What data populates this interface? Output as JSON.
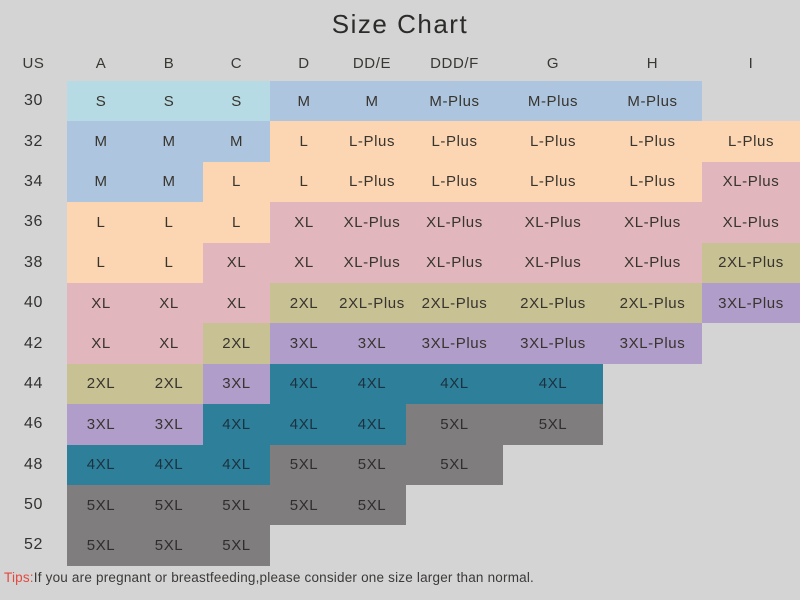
{
  "chart_data": {
    "type": "table",
    "title": "Size Chart",
    "columns": [
      "US",
      "A",
      "B",
      "C",
      "D",
      "DD/E",
      "DDD/F",
      "G",
      "H",
      "I"
    ],
    "rows": [
      {
        "us": "30",
        "cells": [
          "S",
          "S",
          "S",
          "M",
          "M",
          "M-Plus",
          "M-Plus",
          "M-Plus",
          null
        ]
      },
      {
        "us": "32",
        "cells": [
          "M",
          "M",
          "M",
          "L",
          "L-Plus",
          "L-Plus",
          "L-Plus",
          "L-Plus",
          "L-Plus"
        ]
      },
      {
        "us": "34",
        "cells": [
          "M",
          "M",
          "L",
          "L",
          "L-Plus",
          "L-Plus",
          "L-Plus",
          "L-Plus",
          "XL-Plus"
        ]
      },
      {
        "us": "36",
        "cells": [
          "L",
          "L",
          "L",
          "XL",
          "XL-Plus",
          "XL-Plus",
          "XL-Plus",
          "XL-Plus",
          "XL-Plus"
        ]
      },
      {
        "us": "38",
        "cells": [
          "L",
          "L",
          "XL",
          "XL",
          "XL-Plus",
          "XL-Plus",
          "XL-Plus",
          "XL-Plus",
          "2XL-Plus"
        ]
      },
      {
        "us": "40",
        "cells": [
          "XL",
          "XL",
          "XL",
          "2XL",
          "2XL-Plus",
          "2XL-Plus",
          "2XL-Plus",
          "2XL-Plus",
          "3XL-Plus"
        ]
      },
      {
        "us": "42",
        "cells": [
          "XL",
          "XL",
          "2XL",
          "3XL",
          "3XL",
          "3XL-Plus",
          "3XL-Plus",
          "3XL-Plus",
          null
        ]
      },
      {
        "us": "44",
        "cells": [
          "2XL",
          "2XL",
          "3XL",
          "4XL",
          "4XL",
          "4XL",
          "4XL",
          null,
          null
        ]
      },
      {
        "us": "46",
        "cells": [
          "3XL",
          "3XL",
          "4XL",
          "4XL",
          "4XL",
          "5XL",
          "5XL",
          null,
          null
        ]
      },
      {
        "us": "48",
        "cells": [
          "4XL",
          "4XL",
          "4XL",
          "5XL",
          "5XL",
          "5XL",
          null,
          null,
          null
        ]
      },
      {
        "us": "50",
        "cells": [
          "5XL",
          "5XL",
          "5XL",
          "5XL",
          "5XL",
          null,
          null,
          null,
          null
        ]
      },
      {
        "us": "52",
        "cells": [
          "5XL",
          "5XL",
          "5XL",
          null,
          null,
          null,
          null,
          null,
          null
        ]
      }
    ],
    "color_legend": {
      "S": "#b6dbe5",
      "M": "#adc5de",
      "L": "#fcd6b3",
      "XL": "#e1b6bd",
      "2XL": "#c7c194",
      "3XL": "#b09dca",
      "4XL": "#2e7f99",
      "5XL": "#7f7d7e"
    },
    "background_color": "#d4d4d4",
    "tips_label_color": "#e4493f"
  },
  "tips": {
    "label": "Tips:",
    "text": "If you are pregnant or breastfeeding,please consider one size larger than normal."
  }
}
